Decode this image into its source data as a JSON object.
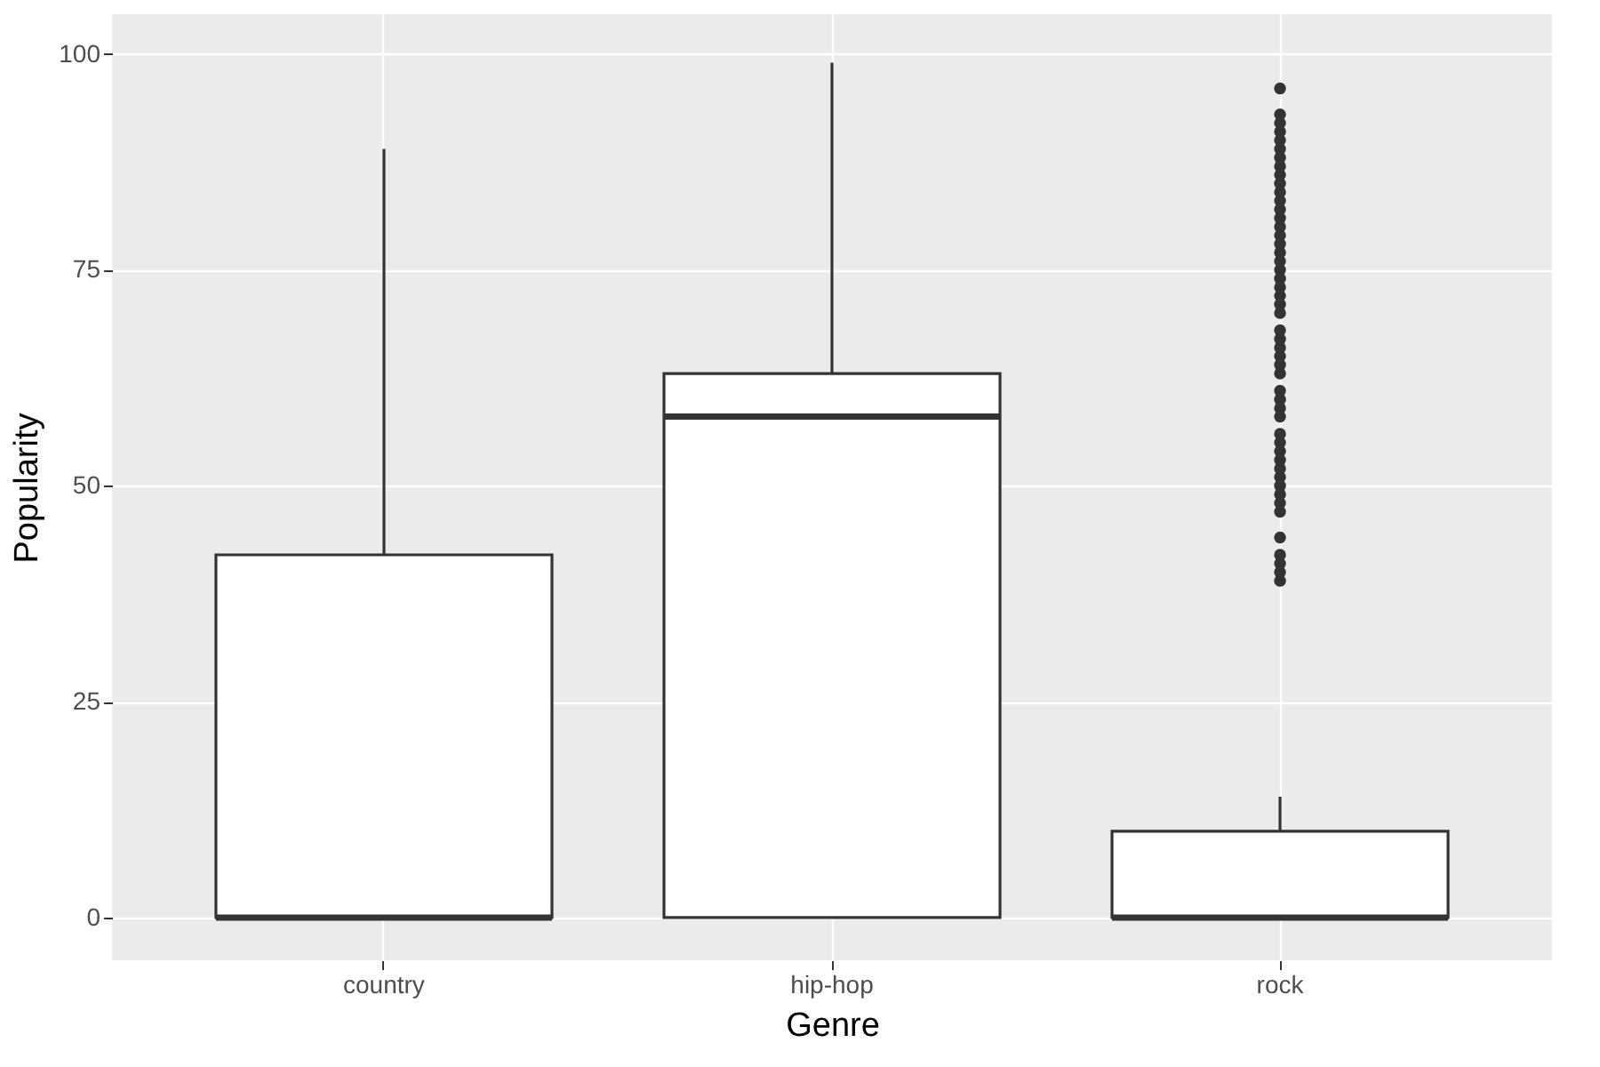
{
  "chart_data": {
    "type": "box",
    "xlabel": "Genre",
    "ylabel": "Popularity",
    "categories": [
      "country",
      "hip-hop",
      "rock"
    ],
    "boxes": [
      {
        "low": 0,
        "q1": 0,
        "median": 0,
        "q3": 42,
        "high": 89
      },
      {
        "low": 0,
        "q1": 0,
        "median": 58,
        "q3": 63,
        "high": 99
      },
      {
        "low": 0,
        "q1": 0,
        "median": 0,
        "q3": 10,
        "high": 14,
        "outliers": [
          96,
          93,
          92,
          91,
          90,
          89,
          88,
          87,
          86,
          85,
          84,
          83,
          82,
          81,
          80,
          79,
          78,
          77,
          76,
          75,
          74,
          73,
          72,
          71,
          70,
          68,
          67,
          66,
          65,
          64,
          63,
          61,
          60,
          59,
          58,
          56,
          55,
          54,
          53,
          52,
          51,
          50,
          49,
          48,
          47,
          44,
          42,
          41,
          40,
          39
        ]
      }
    ],
    "ylim": [
      -4.95,
      104.6
    ],
    "yticks": [
      0,
      25,
      50,
      75,
      100
    ],
    "grid": true
  }
}
